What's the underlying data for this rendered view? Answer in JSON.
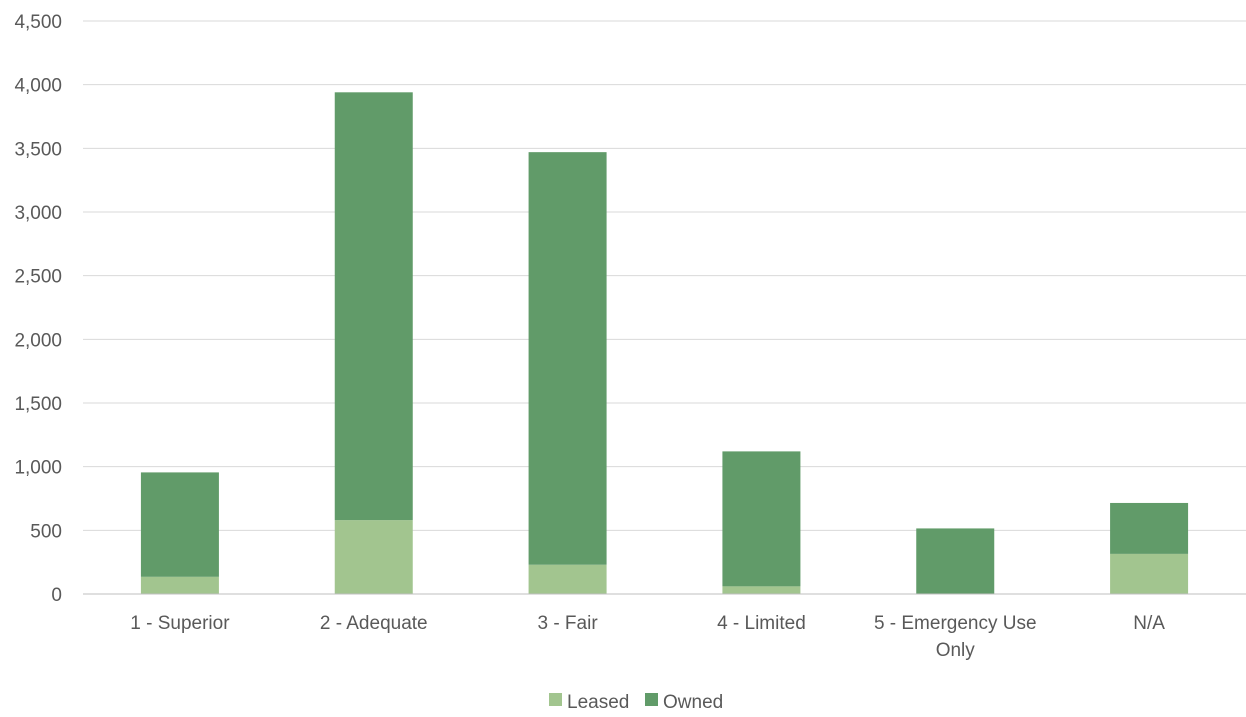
{
  "chart_data": {
    "type": "bar",
    "stacked": true,
    "title": "",
    "xlabel": "",
    "ylabel": "",
    "categories": [
      [
        "1 - Superior"
      ],
      [
        "2 - Adequate"
      ],
      [
        "3 - Fair"
      ],
      [
        "4 - Limited"
      ],
      [
        "5 - Emergency Use",
        "Only"
      ],
      [
        "N/A"
      ]
    ],
    "series": [
      {
        "name": "Leased",
        "color": "#a2c58f",
        "values": [
          135,
          580,
          230,
          60,
          0,
          315
        ]
      },
      {
        "name": "Owned",
        "color": "#619b69",
        "values": [
          820,
          3360,
          3240,
          1060,
          515,
          400
        ]
      }
    ],
    "ylim": [
      0,
      4500
    ],
    "yticks": [
      0,
      500,
      1000,
      1500,
      2000,
      2500,
      3000,
      3500,
      4000,
      4500
    ],
    "ytick_labels": [
      "0",
      "500",
      "1,000",
      "1,500",
      "2,000",
      "2,500",
      "3,000",
      "3,500",
      "4,000",
      "4,500"
    ],
    "grid": true,
    "legend_position": "bottom-center"
  }
}
